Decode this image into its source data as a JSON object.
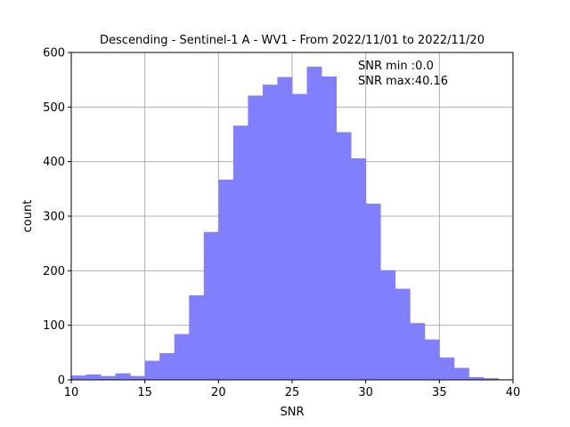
{
  "chart_data": {
    "type": "bar",
    "title": "Descending - Sentinel-1 A - WV1 - From 2022/11/01 to 2022/11/20",
    "xlabel": "SNR",
    "ylabel": "count",
    "xlim": [
      10,
      40
    ],
    "ylim": [
      0,
      600
    ],
    "xticks": [
      "10",
      "15",
      "20",
      "25",
      "30",
      "35",
      "40"
    ],
    "yticks": [
      "0",
      "100",
      "200",
      "300",
      "400",
      "500",
      "600"
    ],
    "grid": true,
    "bar_color": "#8080ff",
    "bin_width": 1.0,
    "bins": [
      {
        "x0": 10,
        "count": 8
      },
      {
        "x0": 11,
        "count": 10
      },
      {
        "x0": 12,
        "count": 7
      },
      {
        "x0": 13,
        "count": 12
      },
      {
        "x0": 14,
        "count": 7
      },
      {
        "x0": 15,
        "count": 35
      },
      {
        "x0": 16,
        "count": 49
      },
      {
        "x0": 17,
        "count": 84
      },
      {
        "x0": 18,
        "count": 155
      },
      {
        "x0": 19,
        "count": 271
      },
      {
        "x0": 20,
        "count": 367
      },
      {
        "x0": 21,
        "count": 466
      },
      {
        "x0": 22,
        "count": 521
      },
      {
        "x0": 23,
        "count": 541
      },
      {
        "x0": 24,
        "count": 555
      },
      {
        "x0": 25,
        "count": 524
      },
      {
        "x0": 26,
        "count": 574
      },
      {
        "x0": 27,
        "count": 556
      },
      {
        "x0": 28,
        "count": 454
      },
      {
        "x0": 29,
        "count": 406
      },
      {
        "x0": 30,
        "count": 323
      },
      {
        "x0": 31,
        "count": 201
      },
      {
        "x0": 32,
        "count": 167
      },
      {
        "x0": 33,
        "count": 104
      },
      {
        "x0": 34,
        "count": 74
      },
      {
        "x0": 35,
        "count": 41
      },
      {
        "x0": 36,
        "count": 22
      },
      {
        "x0": 37,
        "count": 5
      },
      {
        "x0": 38,
        "count": 3
      },
      {
        "x0": 39,
        "count": 1
      }
    ],
    "annotations": [
      "SNR min :0.0",
      "SNR max:40.16"
    ]
  }
}
